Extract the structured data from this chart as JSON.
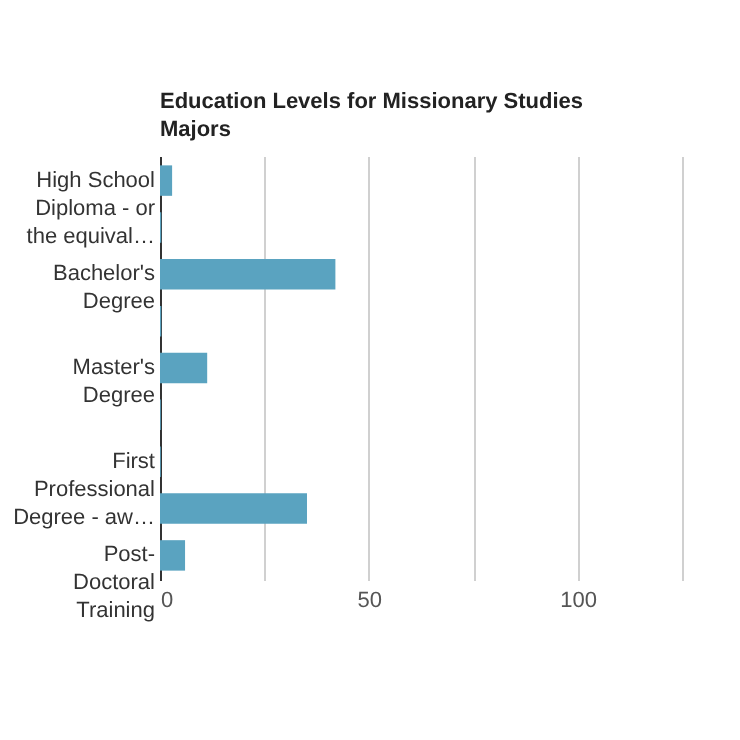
{
  "chart_data": {
    "type": "bar",
    "orientation": "horizontal",
    "title": "Education Levels for Missionary Studies Majors",
    "categories": [
      "High School Diploma - or the equival…",
      null,
      "Bachelor's Degree",
      null,
      "Master's Degree",
      null,
      "First Professional Degree - aw…",
      null,
      "Post-Doctoral Training"
    ],
    "values": [
      2.9,
      0.3,
      42,
      0.3,
      11.3,
      0.2,
      0.2,
      35.2,
      6.0
    ],
    "color": "#5aa3c0",
    "xlim": [
      0,
      125
    ],
    "xticks": [
      0,
      {
        "value": 25,
        "label": null
      },
      50,
      {
        "value": 75,
        "label": null
      },
      100,
      {
        "value": 125,
        "label": null
      }
    ],
    "grid": "x"
  }
}
